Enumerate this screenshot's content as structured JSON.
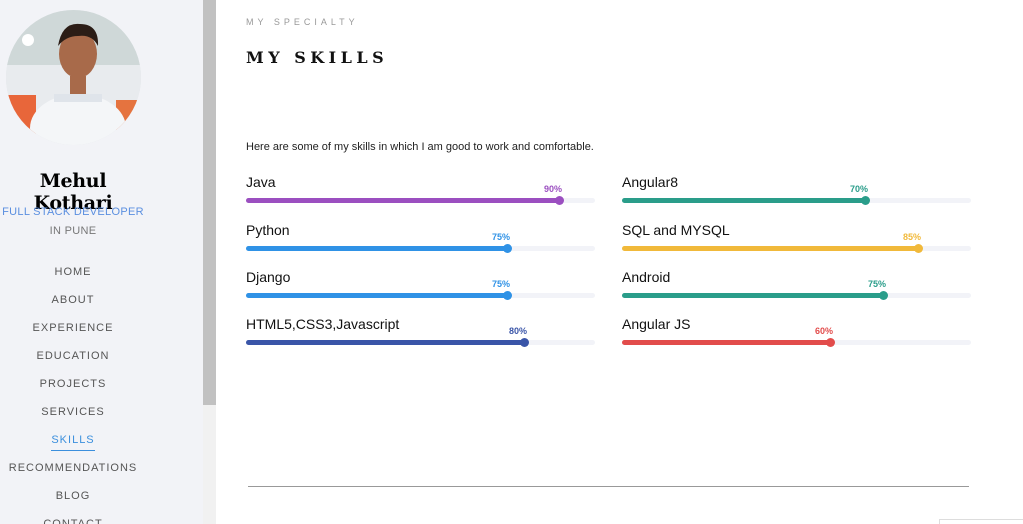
{
  "sidebar": {
    "profile": {
      "name": "Mehul Kothari",
      "role": "FULL STACK DEVELOPER",
      "location": "IN PUNE"
    },
    "nav": [
      {
        "label": "HOME",
        "active": false
      },
      {
        "label": "ABOUT",
        "active": false
      },
      {
        "label": "EXPERIENCE",
        "active": false
      },
      {
        "label": "EDUCATION",
        "active": false
      },
      {
        "label": "PROJECTS",
        "active": false
      },
      {
        "label": "SERVICES",
        "active": false
      },
      {
        "label": "SKILLS",
        "active": true
      },
      {
        "label": "RECOMMENDATIONS",
        "active": false
      },
      {
        "label": "BLOG",
        "active": false
      },
      {
        "label": "CONTACT",
        "active": false
      }
    ]
  },
  "main": {
    "eyebrow": "MY SPECIALTY",
    "title": "MY SKILLS",
    "intro": "Here are some of my skills in which I am good to work and comfortable.",
    "skills_left": [
      {
        "name": "Java",
        "percent": 90,
        "label": "90%",
        "color": "#9b4fc0"
      },
      {
        "name": "Python",
        "percent": 75,
        "label": "75%",
        "color": "#2f92e6"
      },
      {
        "name": "Django",
        "percent": 75,
        "label": "75%",
        "color": "#2f92e6"
      },
      {
        "name": "HTML5,CSS3,Javascript",
        "percent": 80,
        "label": "80%",
        "color": "#3a55a8"
      }
    ],
    "skills_right": [
      {
        "name": "Angular8",
        "percent": 70,
        "label": "70%",
        "color": "#2a9d8a"
      },
      {
        "name": "SQL and MYSQL",
        "percent": 85,
        "label": "85%",
        "color": "#f1b93a"
      },
      {
        "name": "Android",
        "percent": 75,
        "label": "75%",
        "color": "#2a9d8a"
      },
      {
        "name": "Angular JS",
        "percent": 60,
        "label": "60%",
        "color": "#e24c4b"
      }
    ]
  }
}
